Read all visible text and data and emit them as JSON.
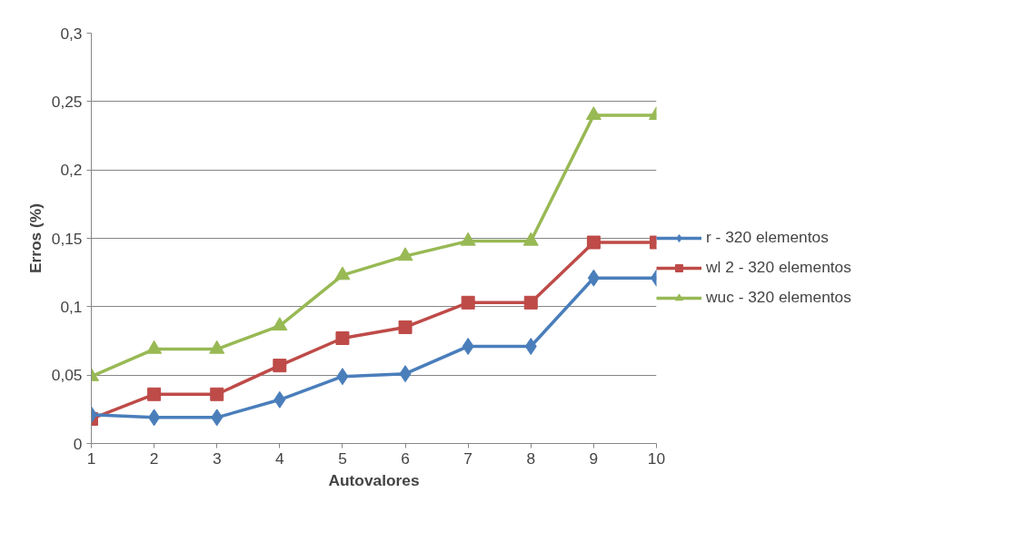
{
  "chart_data": {
    "type": "line",
    "xlabel": "Autovalores",
    "ylabel": "Erros (%)",
    "x": [
      1,
      2,
      3,
      4,
      5,
      6,
      7,
      8,
      9,
      10
    ],
    "xlim": [
      1,
      10
    ],
    "xticks": [
      1,
      2,
      3,
      4,
      5,
      6,
      7,
      8,
      9,
      10
    ],
    "ylim": [
      0,
      0.3
    ],
    "yticks": [
      0,
      {
        "value": 0.05,
        "label": "0,05"
      },
      {
        "value": 0.1,
        "label": "0,1"
      },
      {
        "value": 0.15,
        "label": "0,15"
      },
      {
        "value": 0.2,
        "label": "0,2"
      },
      {
        "value": 0.25,
        "label": "0,25"
      },
      {
        "value": 0.3,
        "label": "0,3"
      }
    ],
    "grid": "y",
    "legend": "right",
    "line_style": "solid",
    "series": [
      {
        "name": "r - 320 elementos",
        "color": "#4a7ebb",
        "marker": "diamond",
        "values": [
          0.021,
          0.019,
          0.019,
          0.032,
          0.049,
          0.051,
          0.071,
          0.071,
          0.121,
          0.121
        ]
      },
      {
        "name": "wl 2 - 320 elementos",
        "color": "#be4b48",
        "marker": "square",
        "values": [
          0.018,
          0.036,
          0.036,
          0.057,
          0.077,
          0.085,
          0.103,
          0.103,
          0.147,
          0.147
        ]
      },
      {
        "name": "wuc - 320 elementos",
        "color": "#98b954",
        "marker": "triangle",
        "values": [
          0.049,
          0.069,
          0.069,
          0.086,
          0.123,
          0.137,
          0.148,
          0.148,
          0.24,
          0.24
        ]
      }
    ]
  }
}
